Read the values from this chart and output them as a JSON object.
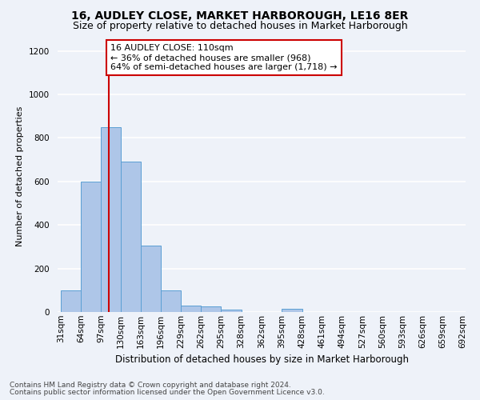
{
  "title": "16, AUDLEY CLOSE, MARKET HARBOROUGH, LE16 8ER",
  "subtitle": "Size of property relative to detached houses in Market Harborough",
  "xlabel": "Distribution of detached houses by size in Market Harborough",
  "ylabel": "Number of detached properties",
  "bar_edges": [
    31,
    64,
    97,
    130,
    163,
    196,
    229,
    262,
    295,
    328,
    362,
    395,
    428,
    461,
    494,
    527,
    560,
    593,
    626,
    659,
    692
  ],
  "bar_heights": [
    100,
    600,
    850,
    690,
    305,
    100,
    30,
    25,
    10,
    0,
    0,
    15,
    0,
    0,
    0,
    0,
    0,
    0,
    0,
    0
  ],
  "bar_color": "#aec6e8",
  "bar_edgecolor": "#5a9fd4",
  "vline_x": 110,
  "vline_color": "#cc0000",
  "annotation_text": "16 AUDLEY CLOSE: 110sqm\n← 36% of detached houses are smaller (968)\n64% of semi-detached houses are larger (1,718) →",
  "annotation_box_color": "#ffffff",
  "annotation_box_edgecolor": "#cc0000",
  "ylim": [
    0,
    1250
  ],
  "yticks": [
    0,
    200,
    400,
    600,
    800,
    1000,
    1200
  ],
  "footer1": "Contains HM Land Registry data © Crown copyright and database right 2024.",
  "footer2": "Contains public sector information licensed under the Open Government Licence v3.0.",
  "background_color": "#eef2f9",
  "grid_color": "#ffffff",
  "title_fontsize": 10,
  "subtitle_fontsize": 9,
  "xlabel_fontsize": 8.5,
  "ylabel_fontsize": 8,
  "tick_fontsize": 7.5,
  "annotation_fontsize": 8,
  "footer_fontsize": 6.5
}
